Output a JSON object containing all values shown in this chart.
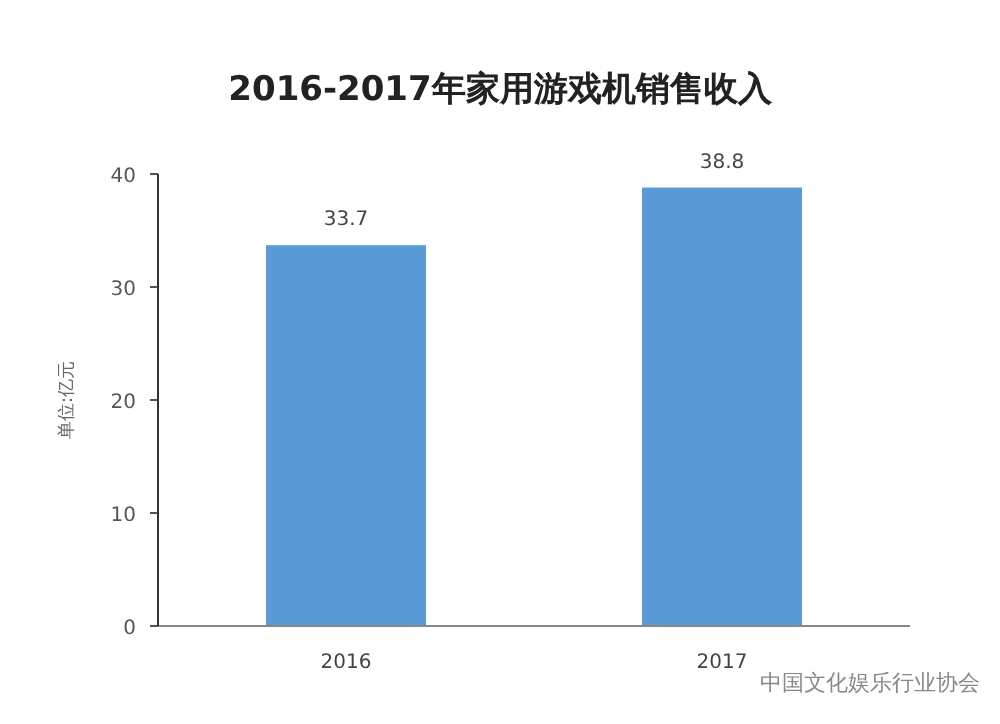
{
  "chart_data": {
    "type": "bar",
    "title": "2016-2017年家用游戏机销售收入",
    "ylabel": "单位:亿元",
    "categories": [
      "2016",
      "2017"
    ],
    "values": [
      33.7,
      38.8
    ],
    "color": "#5b9bd5",
    "ylim": [
      0,
      40
    ],
    "yticks": [
      0,
      10,
      20,
      30,
      40
    ],
    "data_labels": true,
    "grid": false,
    "annotations": [
      "中国文化娱乐行业协会"
    ]
  }
}
